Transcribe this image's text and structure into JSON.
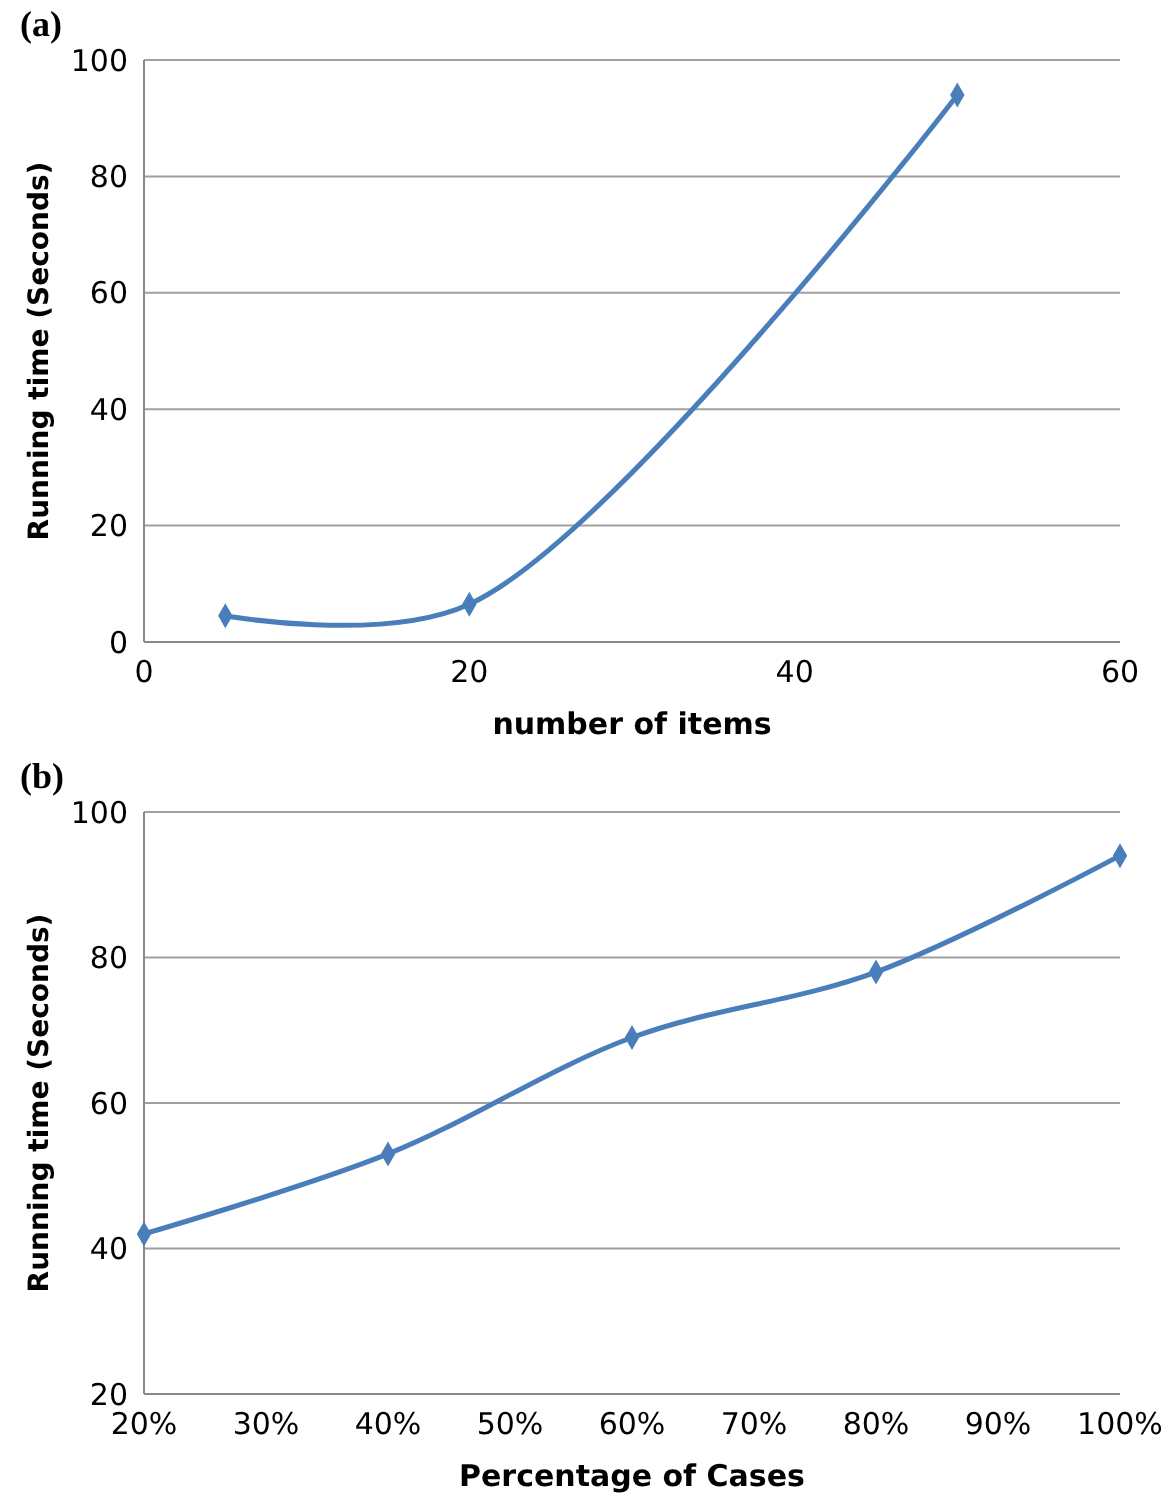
{
  "chart_data": [
    {
      "type": "line",
      "title": "(a)",
      "xlabel": "number of items",
      "ylabel": "Running time (Seconds)",
      "x": [
        5,
        20,
        50
      ],
      "series": [
        {
          "color": "#4a7ebb",
          "values": [
            4.5,
            6.5,
            94
          ]
        }
      ],
      "xlim": [
        0,
        60
      ],
      "xticks": [
        0,
        20,
        40,
        60
      ],
      "ylim": [
        0,
        100
      ],
      "yticks": [
        0,
        20,
        40,
        60,
        80,
        100
      ],
      "grid": "y",
      "marker": "diamond",
      "line_style": "solid"
    },
    {
      "type": "line",
      "title": "(b)",
      "xlabel": "Percentage of Cases",
      "ylabel": "Running time (Seconds)",
      "x": [
        20,
        40,
        60,
        80,
        100
      ],
      "series": [
        {
          "color": "#4a7ebb",
          "values": [
            42,
            53,
            69,
            78,
            94
          ]
        }
      ],
      "xlim": [
        20,
        100
      ],
      "xticks": [
        {
          "value": 20,
          "label": "20%"
        },
        {
          "value": 30,
          "label": "30%"
        },
        {
          "value": 40,
          "label": "40%"
        },
        {
          "value": 50,
          "label": "50%"
        },
        {
          "value": 60,
          "label": "60%"
        },
        {
          "value": 70,
          "label": "70%"
        },
        {
          "value": 80,
          "label": "80%"
        },
        {
          "value": 90,
          "label": "90%"
        },
        {
          "value": 100,
          "label": "100%"
        }
      ],
      "ylim": [
        20,
        100
      ],
      "yticks": [
        20,
        40,
        60,
        80,
        100
      ],
      "grid": "y",
      "marker": "diamond",
      "line_style": "solid"
    }
  ]
}
